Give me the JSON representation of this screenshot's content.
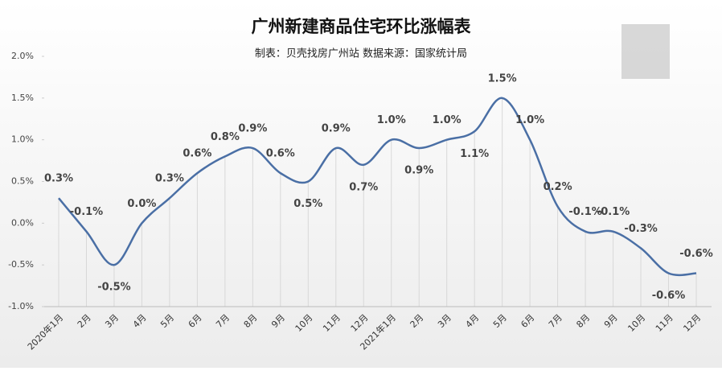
{
  "chart_data": {
    "type": "line",
    "title": "广州新建商品住宅环比涨幅表",
    "subtitle": "制表：贝壳找房广州站 数据来源：国家统计局",
    "categories": [
      "2020年1月",
      "2月",
      "3月",
      "4月",
      "5月",
      "6月",
      "7月",
      "8月",
      "9月",
      "10月",
      "11月",
      "12月",
      "2021年1月",
      "2月",
      "3月",
      "4月",
      "5月",
      "6月",
      "7月",
      "8月",
      "9月",
      "10月",
      "11月",
      "12月"
    ],
    "values": [
      0.3,
      -0.1,
      -0.5,
      0.0,
      0.3,
      0.6,
      0.8,
      0.9,
      0.6,
      0.5,
      0.9,
      0.7,
      1.0,
      0.9,
      1.0,
      1.1,
      1.5,
      1.0,
      0.2,
      -0.1,
      -0.1,
      -0.3,
      -0.6,
      -0.6
    ],
    "value_labels": [
      "0.3%",
      "-0.1%",
      "-0.5%",
      "0.0%",
      "0.3%",
      "0.6%",
      "0.8%",
      "0.9%",
      "0.6%",
      "0.5%",
      "0.9%",
      "0.7%",
      "1.0%",
      "0.9%",
      "1.0%",
      "1.1%",
      "1.5%",
      "1.0%",
      "0.2%",
      "-0.1%",
      "-0.1%",
      "-0.3%",
      "-0.6%",
      "-0.6%"
    ],
    "color": "#4a6fa5",
    "ylim": [
      -1.0,
      2.0
    ],
    "yticks": [
      {
        "value": -1.0,
        "label": "-1.0%"
      },
      {
        "value": -0.5,
        "label": "-0.5%"
      },
      {
        "value": 0.0,
        "label": "0.0%"
      },
      {
        "value": 0.5,
        "label": "0.5%"
      },
      {
        "value": 1.0,
        "label": "1.0%"
      },
      {
        "value": 1.5,
        "label": "1.5%"
      },
      {
        "value": 2.0,
        "label": "2.0%"
      }
    ]
  }
}
